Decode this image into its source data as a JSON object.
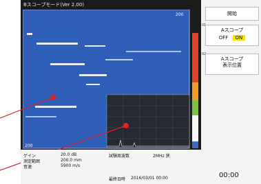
{
  "header": {
    "title": "Bスコープモード(Ver 2.00)"
  },
  "plot": {
    "range_top": "200",
    "range_bottom": "200"
  },
  "side_menu": {
    "start": "開始",
    "a_scope_index": "01",
    "a_scope_label": "Aスコープ",
    "a_scope_off": "OFF",
    "a_scope_on": "ON",
    "position_index": "02",
    "position_lines": [
      "Aスコープ",
      "表示位置"
    ]
  },
  "status": {
    "rows": [
      [
        "ゲイン",
        "20.0 dB"
      ],
      [
        "測定範囲",
        "200.0 mm"
      ],
      [
        "音速",
        "5900 m/s"
      ]
    ],
    "frequency_label": "試験周波数",
    "frequency_value": "2MHz 狭",
    "datetime_label": "最終日時",
    "datetime_value": "2016/03/01 00:00",
    "clock": "00:00"
  }
}
